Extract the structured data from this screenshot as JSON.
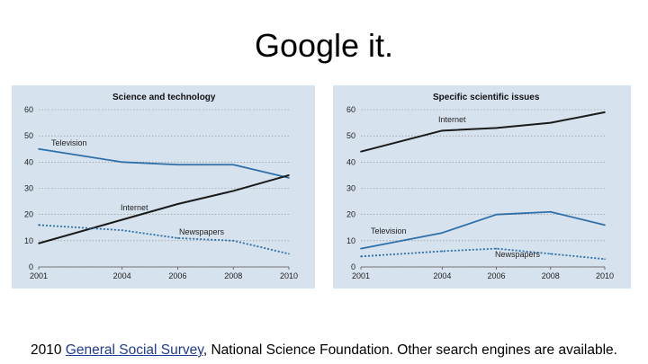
{
  "slide": {
    "title": "Google it.",
    "footer": {
      "prefix": "2010 ",
      "link_text": "General Social Survey",
      "suffix": ", National Science Foundation. Other search engines are available."
    }
  },
  "colors": {
    "panel_bg": "#d6e2ee",
    "internet": "#1a1a1a",
    "television": "#2e6fa8",
    "newspapers": "#2e6fa8",
    "link": "#1f3a93"
  },
  "chart_data": [
    {
      "type": "line",
      "title": "Science and technology",
      "x_ticks": [
        "2001",
        "2004",
        "2006",
        "2008",
        "2010"
      ],
      "y_ticks": [
        "0",
        "10",
        "20",
        "30",
        "40",
        "50",
        "60"
      ],
      "ylim": [
        0,
        60
      ],
      "series": [
        {
          "name": "Television",
          "style": "solid",
          "color": "#2e6fa8",
          "x": [
            2001,
            2004,
            2006,
            2008,
            2010
          ],
          "values": [
            45,
            40,
            39,
            39,
            34
          ]
        },
        {
          "name": "Internet",
          "style": "solid",
          "color": "#1a1a1a",
          "x": [
            2001,
            2004,
            2006,
            2008,
            2010
          ],
          "values": [
            9,
            18,
            24,
            29,
            35
          ]
        },
        {
          "name": "Newspapers",
          "style": "dotted",
          "color": "#2e6fa8",
          "x": [
            2001,
            2004,
            2006,
            2008,
            2010
          ],
          "values": [
            16,
            14,
            11,
            10,
            5
          ]
        }
      ]
    },
    {
      "type": "line",
      "title": "Specific scientific issues",
      "x_ticks": [
        "2001",
        "2004",
        "2006",
        "2008",
        "2010"
      ],
      "y_ticks": [
        "0",
        "10",
        "20",
        "30",
        "40",
        "50",
        "60"
      ],
      "ylim": [
        0,
        60
      ],
      "series": [
        {
          "name": "Internet",
          "style": "solid",
          "color": "#1a1a1a",
          "x": [
            2001,
            2004,
            2006,
            2008,
            2010
          ],
          "values": [
            44,
            52,
            53,
            55,
            59
          ]
        },
        {
          "name": "Television",
          "style": "solid",
          "color": "#2e6fa8",
          "x": [
            2001,
            2004,
            2006,
            2008,
            2010
          ],
          "values": [
            7,
            13,
            20,
            21,
            16
          ]
        },
        {
          "name": "Newspapers",
          "style": "dotted",
          "color": "#2e6fa8",
          "x": [
            2001,
            2004,
            2006,
            2008,
            2010
          ],
          "values": [
            4,
            6,
            7,
            5,
            3
          ]
        }
      ]
    }
  ]
}
